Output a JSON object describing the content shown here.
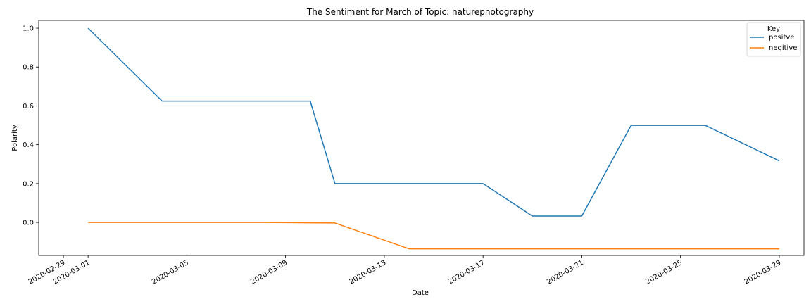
{
  "chart_data": {
    "type": "line",
    "title": "The Sentiment for March of Topic: naturephotography",
    "xlabel": "Date",
    "ylabel": "Polarity",
    "x_axis_type": "date",
    "xlim": [
      "2020-02-28",
      "2020-03-30"
    ],
    "ylim": [
      -0.17,
      1.04
    ],
    "grid": false,
    "x_ticks": [
      "2020-02-29",
      "2020-03-01",
      "2020-03-05",
      "2020-03-09",
      "2020-03-13",
      "2020-03-17",
      "2020-03-21",
      "2020-03-25",
      "2020-03-29"
    ],
    "y_ticks": [
      0.0,
      0.2,
      0.4,
      0.6,
      0.8,
      1.0
    ],
    "y_tick_labels": [
      "0.0",
      "0.2",
      "0.4",
      "0.6",
      "0.8",
      "1.0"
    ],
    "legend": {
      "title": "Key",
      "position": "top-right"
    },
    "series": [
      {
        "name": "positve",
        "color": "#1f77b4",
        "x": [
          "2020-03-01",
          "2020-03-04",
          "2020-03-10",
          "2020-03-11",
          "2020-03-17",
          "2020-03-19",
          "2020-03-21",
          "2020-03-23",
          "2020-03-26",
          "2020-03-29"
        ],
        "values": [
          1.0,
          0.625,
          0.625,
          0.2,
          0.2,
          0.033,
          0.033,
          0.5,
          0.5,
          0.317
        ]
      },
      {
        "name": "negitive",
        "color": "#ff7f0e",
        "x": [
          "2020-03-01",
          "2020-03-08",
          "2020-03-11",
          "2020-03-14",
          "2020-03-29"
        ],
        "values": [
          0.0,
          0.0,
          -0.003,
          -0.136,
          -0.136
        ]
      }
    ]
  }
}
